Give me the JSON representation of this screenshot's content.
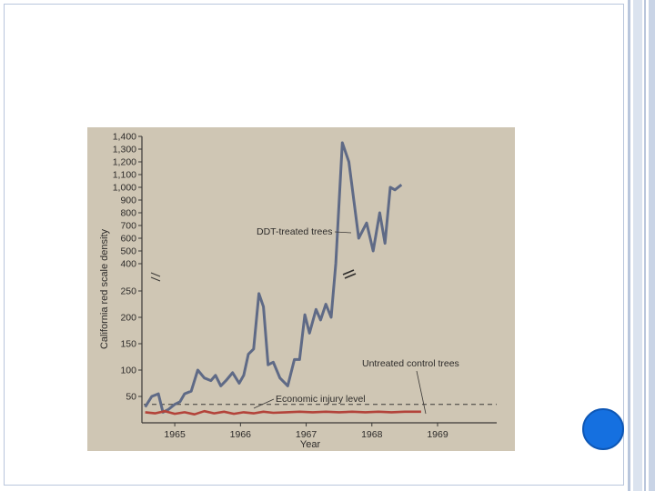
{
  "slide": {
    "accent_color": "#1570e0",
    "frame_color": "#b9c6dc"
  },
  "chart_data": {
    "type": "line",
    "title": "",
    "xlabel": "Year",
    "ylabel": "California red scale density",
    "x_ticks": [
      "1965",
      "1966",
      "1967",
      "1968",
      "1969"
    ],
    "y_ticks_lower": [
      "50",
      "100",
      "150",
      "200",
      "250"
    ],
    "y_ticks_upper": [
      "400",
      "500",
      "600",
      "700",
      "800",
      "900",
      "1,000",
      "1,100",
      "1,200",
      "1,300",
      "1,400"
    ],
    "axis_break": true,
    "ylim": [
      0,
      1400
    ],
    "annotations": {
      "ddt": "DDT-treated trees",
      "untreated": "Untreated control trees",
      "injury": "Economic injury level"
    },
    "economic_injury_level": 35,
    "series": [
      {
        "name": "DDT-treated trees",
        "color": "#5f6a86",
        "points": [
          [
            1964.55,
            30
          ],
          [
            1964.65,
            50
          ],
          [
            1964.75,
            55
          ],
          [
            1964.82,
            20
          ],
          [
            1964.9,
            25
          ],
          [
            1965.0,
            35
          ],
          [
            1965.08,
            40
          ],
          [
            1965.15,
            55
          ],
          [
            1965.25,
            60
          ],
          [
            1965.35,
            100
          ],
          [
            1965.45,
            85
          ],
          [
            1965.55,
            80
          ],
          [
            1965.62,
            90
          ],
          [
            1965.7,
            70
          ],
          [
            1965.78,
            80
          ],
          [
            1965.88,
            95
          ],
          [
            1965.98,
            75
          ],
          [
            1966.05,
            90
          ],
          [
            1966.12,
            130
          ],
          [
            1966.2,
            140
          ],
          [
            1966.28,
            245
          ],
          [
            1966.35,
            220
          ],
          [
            1966.42,
            110
          ],
          [
            1966.5,
            115
          ],
          [
            1966.6,
            85
          ],
          [
            1966.72,
            70
          ],
          [
            1966.82,
            120
          ],
          [
            1966.9,
            120
          ],
          [
            1966.98,
            205
          ],
          [
            1967.05,
            170
          ],
          [
            1967.15,
            215
          ],
          [
            1967.22,
            195
          ],
          [
            1967.3,
            225
          ],
          [
            1967.38,
            200
          ],
          [
            1967.45,
            300
          ],
          [
            1967.55,
            1350
          ],
          [
            1967.65,
            1200
          ],
          [
            1967.8,
            600
          ],
          [
            1967.92,
            720
          ],
          [
            1968.02,
            500
          ],
          [
            1968.12,
            800
          ],
          [
            1968.2,
            560
          ],
          [
            1968.28,
            1000
          ],
          [
            1968.35,
            980
          ],
          [
            1968.45,
            1020
          ]
        ]
      },
      {
        "name": "Untreated control trees",
        "color": "#b3433a",
        "points": [
          [
            1964.55,
            20
          ],
          [
            1964.7,
            18
          ],
          [
            1964.85,
            22
          ],
          [
            1965.0,
            17
          ],
          [
            1965.15,
            20
          ],
          [
            1965.3,
            16
          ],
          [
            1965.45,
            22
          ],
          [
            1965.6,
            18
          ],
          [
            1965.75,
            21
          ],
          [
            1965.9,
            17
          ],
          [
            1966.05,
            20
          ],
          [
            1966.2,
            18
          ],
          [
            1966.35,
            21
          ],
          [
            1966.5,
            19
          ],
          [
            1966.7,
            20
          ],
          [
            1966.9,
            21
          ],
          [
            1967.1,
            20
          ],
          [
            1967.3,
            21
          ],
          [
            1967.5,
            20
          ],
          [
            1967.7,
            21
          ],
          [
            1967.9,
            20
          ],
          [
            1968.1,
            21
          ],
          [
            1968.3,
            20
          ],
          [
            1968.5,
            21
          ],
          [
            1968.75,
            21
          ]
        ]
      }
    ],
    "grid": false,
    "legend": "inline labels"
  }
}
